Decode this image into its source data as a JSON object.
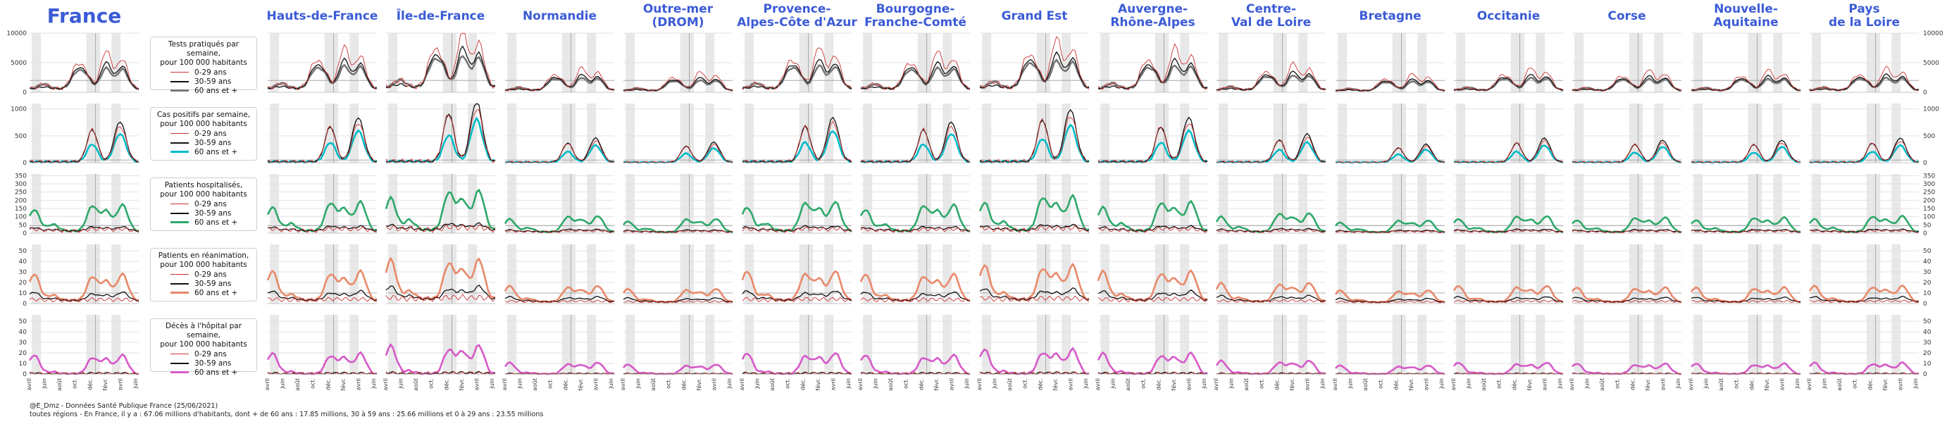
{
  "chart_data": {
    "type": "line",
    "regions": [
      "France",
      "Hauts-de-France",
      "Île-de-France",
      "Normandie",
      "Outre-mer\n(DROM)",
      "Provence-\nAlpes-Côte d'Azur",
      "Bourgogne-\nFranche-Comté",
      "Grand Est",
      "Auvergne-\nRhône-Alpes",
      "Centre-\nVal de Loire",
      "Bretagne",
      "Occitanie",
      "Corse",
      "Nouvelle-\nAquitaine",
      "Pays\nde la Loire"
    ],
    "x_ticks": [
      "avril",
      "juin",
      "août",
      "oct.",
      "déc.",
      "févr.",
      "avril",
      "juin"
    ],
    "series_names": [
      "0-29 ans",
      "30-59 ans",
      "60 ans et +"
    ],
    "rows": [
      {
        "metric": "Tests pratiqués par semaine, pour 100 000 habitants",
        "yticks": [
          0,
          5000,
          10000
        ],
        "ylim": [
          0,
          10000
        ],
        "color60": "#777777",
        "ref": 2000,
        "peaks": [
          [
            6,
            800,
            300,
            800
          ],
          [
            20,
            3500,
            2800,
            2400
          ],
          [
            24,
            2600,
            2400,
            2200
          ],
          [
            33,
            6500,
            4500,
            3500
          ],
          [
            40,
            5000,
            3800,
            3300
          ]
        ]
      },
      {
        "metric": "Cas positifs par semaine, pour 100 000 habitants",
        "yticks": [
          0,
          500,
          1000
        ],
        "ylim": [
          0,
          1100
        ],
        "color60": "#00bcc8",
        "ref": 50,
        "peaks": [
          [
            8,
            0,
            0,
            0
          ],
          [
            27,
            600,
            600,
            330
          ],
          [
            38,
            350,
            430,
            300
          ],
          [
            40,
            380,
            400,
            280
          ]
        ]
      },
      {
        "metric": "Patients hospitalisés, pour 100 000 habitants",
        "yticks": [
          0,
          50,
          100,
          150,
          200,
          250,
          300,
          350
        ],
        "ylim": [
          0,
          360
        ],
        "color60": "#2ea86a",
        "ref": 45,
        "peaks": [
          [
            2,
            10,
            20,
            130
          ],
          [
            10,
            5,
            8,
            40
          ],
          [
            27,
            12,
            25,
            150
          ],
          [
            33,
            10,
            18,
            120
          ],
          [
            40,
            12,
            25,
            160
          ]
        ]
      },
      {
        "metric": "Patients en réanimation, pour 100 000 habitants",
        "yticks": [
          0,
          10,
          20,
          30,
          40,
          50
        ],
        "ylim": [
          0,
          56
        ],
        "color60": "#e8896a",
        "ref": 10,
        "peaks": [
          [
            2,
            1,
            8,
            25
          ],
          [
            10,
            0,
            2,
            5
          ],
          [
            27,
            1,
            6,
            22
          ],
          [
            33,
            1,
            5,
            18
          ],
          [
            40,
            1,
            8,
            25
          ]
        ]
      },
      {
        "metric": "Décès à l'hôpital par semaine, pour 100 000 habitants",
        "yticks": [
          0,
          10,
          20,
          30,
          40,
          50
        ],
        "ylim": [
          0,
          56
        ],
        "color60": "#d659c8",
        "ref": 0,
        "peaks": [
          [
            2,
            0,
            1,
            18
          ],
          [
            10,
            0,
            0,
            2
          ],
          [
            27,
            0,
            1,
            15
          ],
          [
            33,
            0,
            1,
            14
          ],
          [
            40,
            0,
            1,
            18
          ]
        ]
      }
    ],
    "region_scale": [
      1.0,
      1.1,
      1.5,
      0.6,
      0.5,
      1.1,
      1.0,
      1.3,
      1.1,
      0.7,
      0.45,
      0.6,
      0.55,
      0.55,
      0.6
    ]
  },
  "legend": {
    "labels": [
      "0-29 ans",
      "30-59 ans",
      "60 ans et +"
    ]
  },
  "colors": {
    "title": "#3b5bd6",
    "young": "#cc3333",
    "mid": "#111111"
  },
  "footer": {
    "source": "@E_Dmz - Données Santé Publique France (25/06/2021)",
    "note": "toutes régions - En France, il y a : 67.06 millions d'habitants, dont + de 60 ans : 17.85 millions, 30 à 59 ans : 25.66 millions et 0 à 29 ans : 23.55 millions"
  }
}
